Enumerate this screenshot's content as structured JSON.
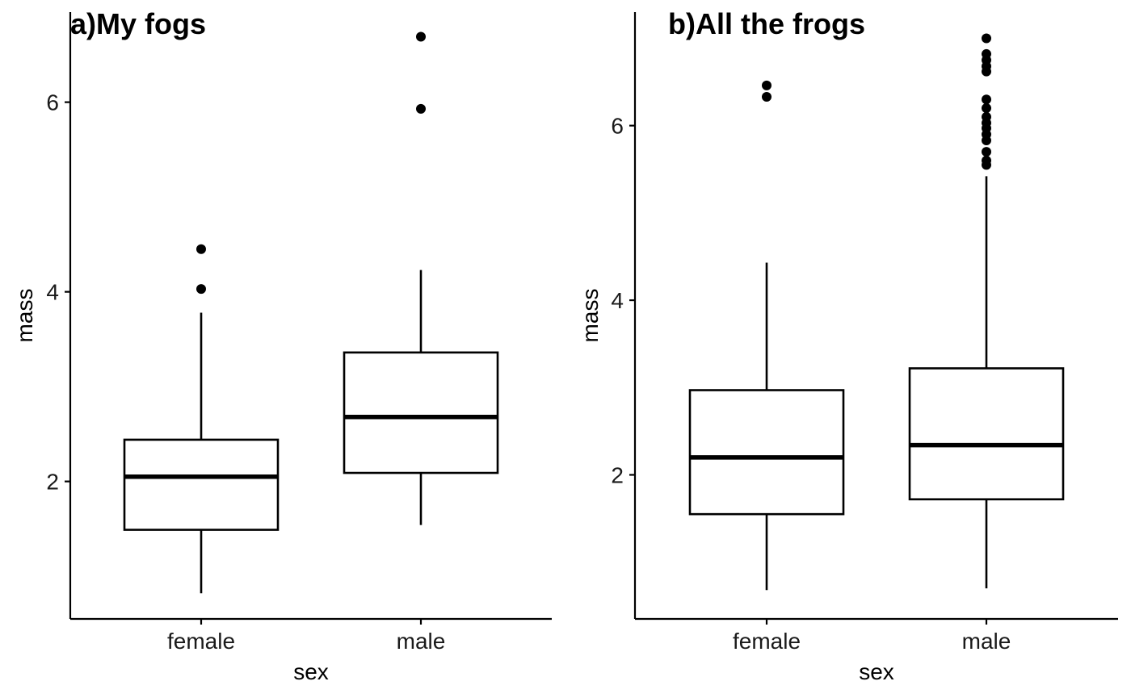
{
  "chart_data": [
    {
      "type": "boxplot",
      "title": "a)My fogs",
      "xlabel": "sex",
      "ylabel": "mass",
      "categories": [
        "female",
        "male"
      ],
      "y_ticks": [
        2,
        4,
        6
      ],
      "ylim": [
        0.55,
        6.95
      ],
      "grid": false,
      "boxes": [
        {
          "category": "female",
          "whisker_low": 0.82,
          "q1": 1.49,
          "median": 2.05,
          "q3": 2.44,
          "whisker_high": 3.78,
          "outliers": [
            4.03,
            4.45
          ]
        },
        {
          "category": "male",
          "whisker_low": 1.54,
          "q1": 2.09,
          "median": 2.68,
          "q3": 3.36,
          "whisker_high": 4.23,
          "outliers": [
            5.93,
            6.69
          ]
        }
      ]
    },
    {
      "type": "boxplot",
      "title": "b)All the frogs",
      "xlabel": "sex",
      "ylabel": "mass",
      "categories": [
        "female",
        "male"
      ],
      "y_ticks": [
        2,
        4,
        6
      ],
      "ylim": [
        0.35,
        7.3
      ],
      "grid": false,
      "boxes": [
        {
          "category": "female",
          "whisker_low": 0.68,
          "q1": 1.55,
          "median": 2.2,
          "q3": 2.97,
          "whisker_high": 4.43,
          "outliers": [
            6.33,
            6.46
          ]
        },
        {
          "category": "male",
          "whisker_low": 0.7,
          "q1": 1.72,
          "median": 2.34,
          "q3": 3.22,
          "whisker_high": 5.42,
          "outliers": [
            5.55,
            5.6,
            5.7,
            5.83,
            5.9,
            5.97,
            6.03,
            6.1,
            6.2,
            6.3,
            6.62,
            6.68,
            6.75,
            6.82,
            7.0
          ]
        }
      ]
    }
  ]
}
